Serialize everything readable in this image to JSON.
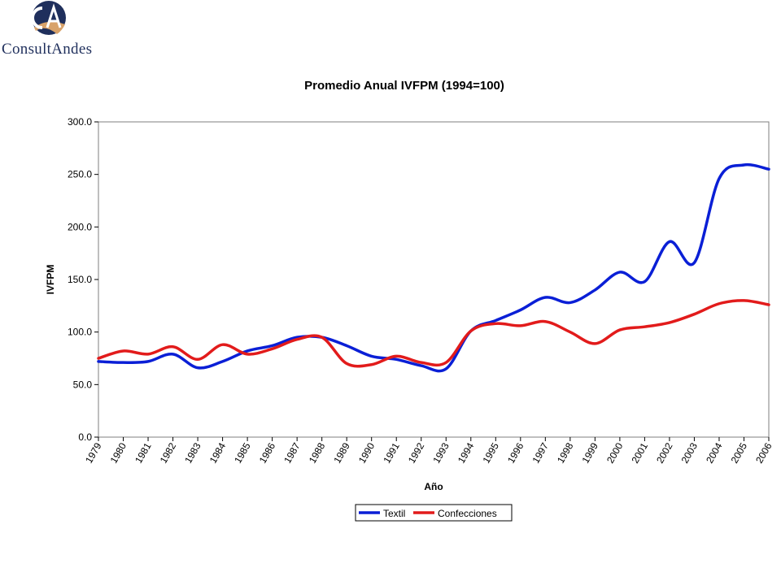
{
  "logo": {
    "text": "ConsultAndes",
    "colors": {
      "primary": "#1f2f5c",
      "secondary": "#d8a26a"
    }
  },
  "chart_data": {
    "type": "line",
    "title": "Promedio Anual IVFPM (1994=100)",
    "xlabel": "Año",
    "ylabel": "IVFPM",
    "ylim": [
      0,
      300
    ],
    "yticks": [
      0,
      50,
      100,
      150,
      200,
      250,
      300
    ],
    "ytick_labels": [
      "0.0",
      "50.0",
      "100.0",
      "150.0",
      "200.0",
      "250.0",
      "300.0"
    ],
    "categories": [
      "1979",
      "1980",
      "1981",
      "1982",
      "1983",
      "1984",
      "1985",
      "1986",
      "1987",
      "1988",
      "1989",
      "1990",
      "1991",
      "1992",
      "1993",
      "1994",
      "1995",
      "1996",
      "1997",
      "1998",
      "1999",
      "2000",
      "2001",
      "2002",
      "2003",
      "2004",
      "2005",
      "2006"
    ],
    "series": [
      {
        "name": "Textil",
        "color": "#0a1fd6",
        "values": [
          72,
          71,
          72,
          79,
          66,
          72,
          82,
          87,
          95,
          95,
          87,
          77,
          74,
          68,
          65,
          101,
          111,
          121,
          133,
          128,
          140,
          157,
          148,
          186,
          166,
          246,
          259,
          255
        ]
      },
      {
        "name": "Confecciones",
        "color": "#e21b1b",
        "values": [
          75,
          82,
          79,
          86,
          74,
          88,
          79,
          84,
          93,
          95,
          70,
          69,
          77,
          71,
          71,
          101,
          108,
          106,
          110,
          100,
          89,
          102,
          105,
          109,
          117,
          127,
          130,
          126
        ]
      }
    ],
    "grid": false,
    "legend": "bottom"
  }
}
